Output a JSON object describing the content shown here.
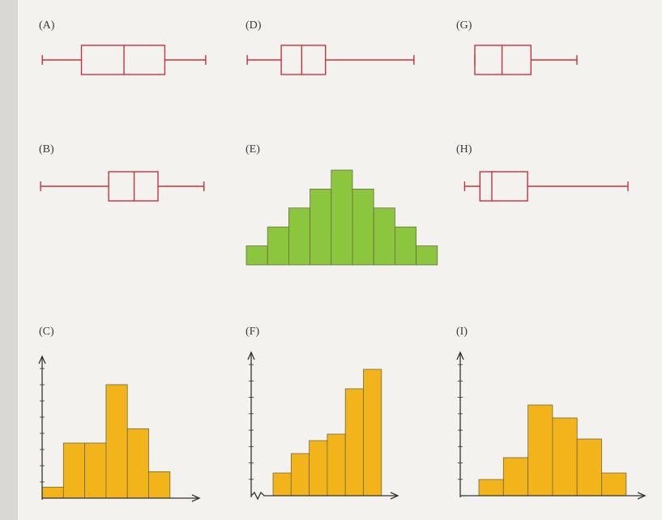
{
  "chart_data": [
    {
      "type": "box",
      "title": "(A)",
      "values": {
        "min": 2,
        "q1": 25,
        "median": 50,
        "q3": 74,
        "max": 98
      },
      "xlim": [
        0,
        100
      ],
      "color": "#c8323c"
    },
    {
      "type": "box",
      "title": "(B)",
      "values": {
        "min": 1,
        "q1": 41,
        "median": 56,
        "q3": 70,
        "max": 97
      },
      "xlim": [
        0,
        100
      ],
      "color": "#c8323c"
    },
    {
      "type": "histogram",
      "title": "(C)",
      "values": [
        1,
        5,
        5,
        10.3,
        6.3,
        2.4
      ],
      "ylim": [
        0,
        12.5
      ],
      "color": "#f2b41a"
    },
    {
      "type": "box",
      "title": "(D)",
      "values": {
        "min": 1,
        "q1": 21,
        "median": 33,
        "q3": 47,
        "max": 99
      },
      "xlim": [
        0,
        100
      ],
      "color": "#c8323c"
    },
    {
      "type": "histogram",
      "title": "(E)",
      "values": [
        1,
        2,
        3,
        4,
        5,
        4,
        3,
        2,
        1
      ],
      "ylim": [
        0,
        5
      ],
      "color": "#8cc63f"
    },
    {
      "type": "histogram",
      "title": "(F)",
      "values": [
        3.5,
        6.5,
        8.5,
        9.5,
        16.5,
        19.5
      ],
      "ylim": [
        0,
        21.5
      ],
      "color": "#f2b41a"
    },
    {
      "type": "box",
      "title": "(G)",
      "values": {
        "min": 10,
        "q1": 10,
        "median": 26,
        "q3": 43,
        "max": 70
      },
      "xlim": [
        0,
        100
      ],
      "color": "#c8323c"
    },
    {
      "type": "box",
      "title": "(H)",
      "values": {
        "min": 4,
        "q1": 13,
        "median": 20,
        "q3": 41,
        "max": 100
      },
      "xlim": [
        0,
        100
      ],
      "color": "#c8323c"
    },
    {
      "type": "histogram",
      "title": "(I)",
      "values": [
        20,
        47,
        112,
        96,
        70,
        28
      ],
      "ylim": [
        0,
        172
      ],
      "color": "#f2b41a"
    }
  ]
}
